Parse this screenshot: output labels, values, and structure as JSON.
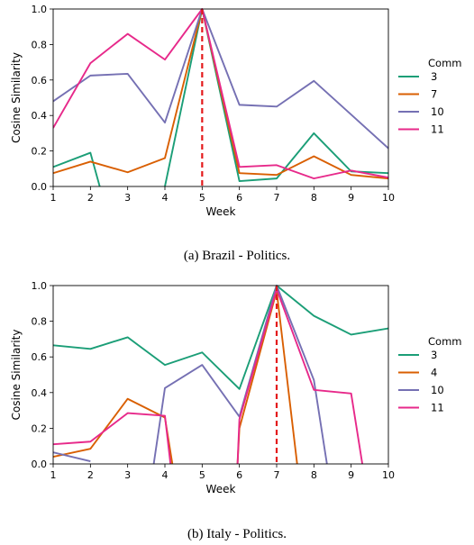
{
  "colors": {
    "3": "#1b9e77",
    "4": "#d95f02",
    "7": "#d95f02",
    "10": "#7570b3",
    "11": "#e7298a",
    "event_line": "#e41a1c"
  },
  "chart_data": [
    {
      "type": "line",
      "caption": "(a) Brazil - Politics.",
      "xlabel": "Week",
      "ylabel": "Cosine Similarity",
      "legend_title": "Comm",
      "legend_position": "right",
      "xlim": [
        1,
        10
      ],
      "ylim": [
        0,
        1.0
      ],
      "xticks": [
        1,
        2,
        3,
        4,
        5,
        6,
        7,
        8,
        9,
        10
      ],
      "yticks": [
        0.0,
        0.2,
        0.4,
        0.6,
        0.8,
        1.0
      ],
      "ytick_labels": [
        "0.0",
        "0.2",
        "0.4",
        "0.6",
        "0.8",
        "1.0"
      ],
      "event_week": 5,
      "series": [
        {
          "name": "3",
          "color_key": "3",
          "segments": [
            [
              [
                1,
                0.11
              ],
              [
                2,
                0.19
              ],
              [
                2.25,
                0.0
              ]
            ],
            [
              [
                4,
                0.0
              ],
              [
                5,
                1.0
              ],
              [
                6,
                0.03
              ],
              [
                7,
                0.045
              ],
              [
                8,
                0.3
              ],
              [
                9,
                0.085
              ],
              [
                10,
                0.075
              ]
            ]
          ]
        },
        {
          "name": "7",
          "color_key": "7",
          "segments": [
            [
              [
                1,
                0.075
              ],
              [
                2,
                0.14
              ],
              [
                3,
                0.08
              ],
              [
                4,
                0.16
              ],
              [
                5,
                1.0
              ],
              [
                6,
                0.075
              ],
              [
                7,
                0.065
              ],
              [
                8,
                0.17
              ],
              [
                9,
                0.065
              ],
              [
                10,
                0.045
              ]
            ]
          ]
        },
        {
          "name": "10",
          "color_key": "10",
          "segments": [
            [
              [
                1,
                0.48
              ],
              [
                2,
                0.625
              ],
              [
                3,
                0.635
              ],
              [
                4,
                0.36
              ],
              [
                5,
                1.0
              ],
              [
                6,
                0.46
              ],
              [
                7,
                0.45
              ],
              [
                8,
                0.595
              ],
              [
                9,
                0.405
              ],
              [
                10,
                0.215
              ]
            ]
          ]
        },
        {
          "name": "11",
          "color_key": "11",
          "segments": [
            [
              [
                1,
                0.33
              ],
              [
                2,
                0.695
              ],
              [
                3,
                0.86
              ],
              [
                4,
                0.715
              ],
              [
                5,
                1.0
              ],
              [
                6,
                0.11
              ],
              [
                7,
                0.12
              ],
              [
                8,
                0.045
              ],
              [
                9,
                0.09
              ],
              [
                10,
                0.05
              ]
            ]
          ]
        }
      ]
    },
    {
      "type": "line",
      "caption": "(b) Italy - Politics.",
      "xlabel": "Week",
      "ylabel": "Cosine Similarity",
      "legend_title": "Comm",
      "legend_position": "right",
      "xlim": [
        1,
        10
      ],
      "ylim": [
        0,
        1.0
      ],
      "xticks": [
        1,
        2,
        3,
        4,
        5,
        6,
        7,
        8,
        9,
        10
      ],
      "yticks": [
        0.0,
        0.2,
        0.4,
        0.6,
        0.8,
        1.0
      ],
      "ytick_labels": [
        "0.0",
        "0.2",
        "0.4",
        "0.6",
        "0.8",
        "1.0"
      ],
      "event_week": 7,
      "series": [
        {
          "name": "3",
          "color_key": "3",
          "segments": [
            [
              [
                1,
                0.665
              ],
              [
                2,
                0.645
              ],
              [
                3,
                0.71
              ],
              [
                4,
                0.555
              ],
              [
                5,
                0.625
              ],
              [
                6,
                0.42
              ],
              [
                7,
                1.0
              ],
              [
                8,
                0.83
              ],
              [
                9,
                0.725
              ],
              [
                10,
                0.76
              ]
            ]
          ]
        },
        {
          "name": "4",
          "color_key": "4",
          "segments": [
            [
              [
                1,
                0.04
              ],
              [
                2,
                0.085
              ],
              [
                3,
                0.365
              ],
              [
                4,
                0.26
              ],
              [
                4.2,
                0.0
              ]
            ],
            [
              [
                5.95,
                0.0
              ],
              [
                6,
                0.2
              ],
              [
                7,
                0.97
              ],
              [
                7.55,
                0.0
              ]
            ]
          ]
        },
        {
          "name": "10",
          "color_key": "10",
          "segments": [
            [
              [
                1,
                0.065
              ],
              [
                2,
                0.015
              ]
            ],
            [
              [
                3.7,
                0.0
              ],
              [
                4,
                0.425
              ],
              [
                5,
                0.555
              ],
              [
                6,
                0.265
              ],
              [
                7,
                1.0
              ],
              [
                8,
                0.47
              ],
              [
                8.35,
                0.0
              ]
            ]
          ]
        },
        {
          "name": "11",
          "color_key": "11",
          "segments": [
            [
              [
                1,
                0.11
              ],
              [
                2,
                0.125
              ],
              [
                3,
                0.285
              ],
              [
                4,
                0.27
              ],
              [
                4.15,
                0.0
              ]
            ],
            [
              [
                5.95,
                0.0
              ],
              [
                6,
                0.25
              ],
              [
                7,
                0.98
              ],
              [
                8,
                0.415
              ],
              [
                9,
                0.395
              ],
              [
                9.3,
                0.0
              ]
            ]
          ]
        }
      ]
    }
  ]
}
